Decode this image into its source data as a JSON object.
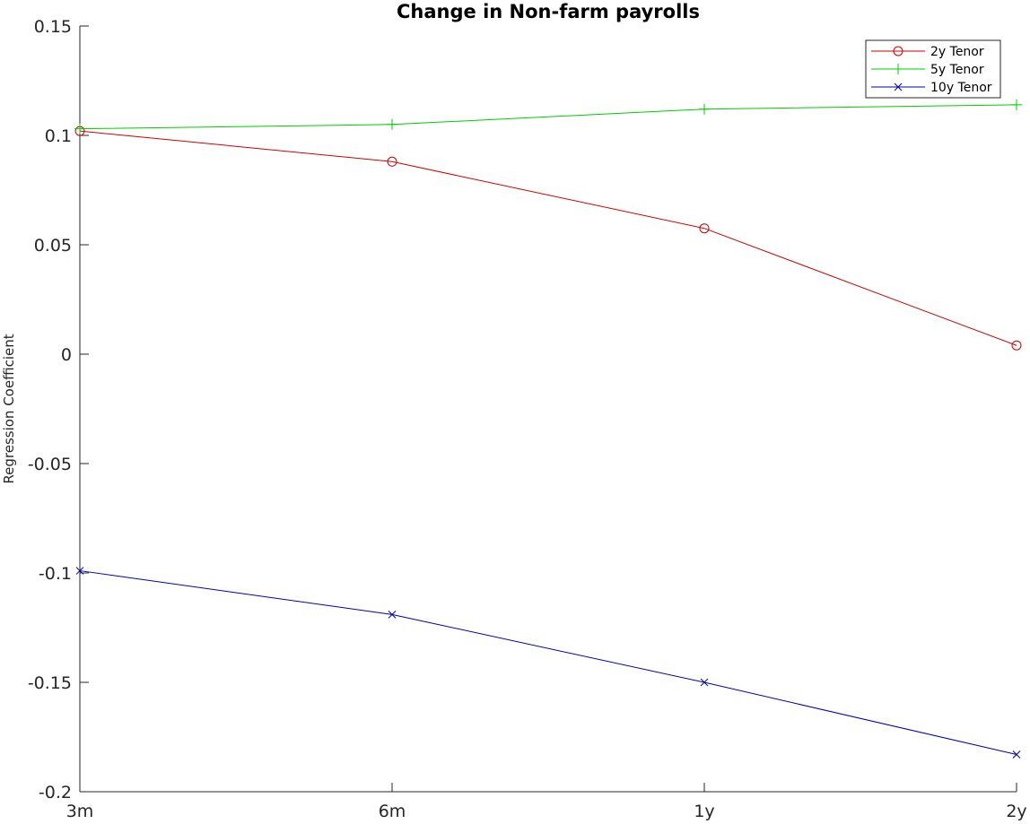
{
  "chart_data": {
    "type": "line",
    "title": "Change in Non-farm payrolls",
    "xlabel": "",
    "ylabel": "Regression Coefficient",
    "categories": [
      "3m",
      "6m",
      "1y",
      "2y"
    ],
    "ylim": [
      -0.2,
      0.15
    ],
    "yticks": [
      -0.2,
      -0.15,
      -0.1,
      -0.05,
      0,
      0.05,
      0.1,
      0.15
    ],
    "ytick_labels": [
      "-0.2",
      "-0.15",
      "-0.1",
      "-0.05",
      "0",
      "0.05",
      "0.1",
      "0.15"
    ],
    "grid": false,
    "legend_position": "top-right",
    "series": [
      {
        "name": "2y Tenor",
        "marker": "circle",
        "color": "#cc0000",
        "values": [
          0.102,
          0.088,
          0.0575,
          0.004
        ]
      },
      {
        "name": "5y Tenor",
        "marker": "plus",
        "color": "#00cc00",
        "values": [
          0.103,
          0.105,
          0.112,
          0.114
        ]
      },
      {
        "name": "10y Tenor",
        "marker": "x",
        "color": "#0000aa",
        "values": [
          -0.099,
          -0.119,
          -0.15,
          -0.183
        ]
      }
    ]
  }
}
